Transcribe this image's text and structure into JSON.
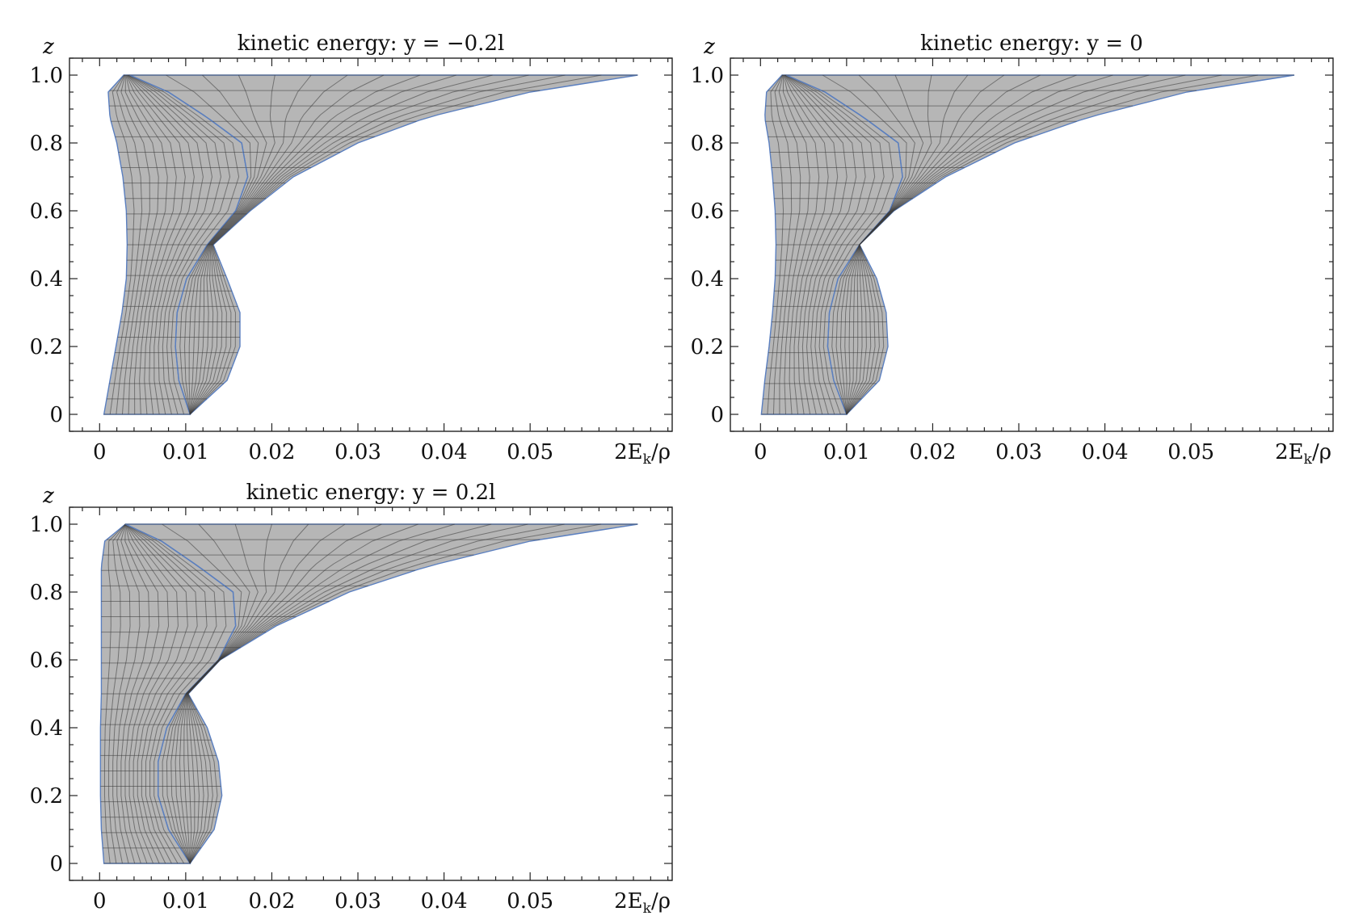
{
  "figure": {
    "colors": {
      "band_fill": "#7a7a7a",
      "band_edge": "#5a7fc0",
      "mesh": "#3a3a3a",
      "frame": "#222222"
    }
  },
  "chart_data": [
    {
      "type": "area",
      "title": "kinetic energy: y = −0.2l",
      "xlabel": "2E_k/ρ",
      "ylabel": "z",
      "xlim": [
        -0.0035,
        0.0665
      ],
      "ylim": [
        -0.05,
        1.05
      ],
      "xticks": [
        0,
        0.01,
        0.02,
        0.03,
        0.04,
        0.05
      ],
      "xtick_labels": [
        "0",
        "0.01",
        "0.02",
        "0.03",
        "0.04",
        "0.05"
      ],
      "yticks": [
        0,
        0.2,
        0.4,
        0.6,
        0.8,
        1.0
      ],
      "ytick_labels": [
        "0",
        "0.2",
        "0.4",
        "0.6",
        "0.8",
        "1.0"
      ],
      "x_end_label": "2E",
      "x_end_sub": "k",
      "x_end_suffix": "/ρ",
      "grid": false,
      "series": [
        {
          "z": [
            0,
            0.1,
            0.2,
            0.3,
            0.4,
            0.5,
            0.6,
            0.7,
            0.8,
            0.875,
            0.95,
            1.0
          ],
          "left": [
            0.0005,
            0.0012,
            0.0019,
            0.0026,
            0.0031,
            0.0032,
            0.0031,
            0.0027,
            0.002,
            0.0012,
            0.001,
            0.0028
          ],
          "right": [
            0.0105,
            0.0092,
            0.0088,
            0.009,
            0.0101,
            0.0125,
            0.0158,
            0.0172,
            0.0165,
            0.0125,
            0.008,
            0.0035
          ]
        },
        {
          "z": [
            0,
            0.1,
            0.2,
            0.3,
            0.4,
            0.5,
            0.6,
            0.7,
            0.8,
            0.875,
            0.95,
            1.0
          ],
          "left": [
            0.0105,
            0.0092,
            0.0088,
            0.009,
            0.0101,
            0.0125,
            0.0158,
            0.0172,
            0.0165,
            0.0125,
            0.008,
            0.0035
          ],
          "right": [
            0.0105,
            0.0148,
            0.0163,
            0.0163,
            0.0148,
            0.0132,
            0.0175,
            0.0225,
            0.03,
            0.038,
            0.05,
            0.0625
          ]
        }
      ]
    },
    {
      "type": "area",
      "title": "kinetic energy: y = 0",
      "xlabel": "2E_k/ρ",
      "ylabel": "z",
      "xlim": [
        -0.0035,
        0.0665
      ],
      "ylim": [
        -0.05,
        1.05
      ],
      "xticks": [
        0,
        0.01,
        0.02,
        0.03,
        0.04,
        0.05
      ],
      "xtick_labels": [
        "0",
        "0.01",
        "0.02",
        "0.03",
        "0.04",
        "0.05"
      ],
      "yticks": [
        0,
        0.2,
        0.4,
        0.6,
        0.8,
        1.0
      ],
      "ytick_labels": [
        "0",
        "0.2",
        "0.4",
        "0.6",
        "0.8",
        "1.0"
      ],
      "x_end_label": "2E",
      "x_end_sub": "k",
      "x_end_suffix": "/ρ",
      "grid": false,
      "series": [
        {
          "z": [
            0,
            0.1,
            0.2,
            0.3,
            0.4,
            0.5,
            0.6,
            0.7,
            0.8,
            0.875,
            0.95,
            1.0
          ],
          "left": [
            0.0001,
            0.0005,
            0.001,
            0.0014,
            0.0017,
            0.0018,
            0.0017,
            0.0014,
            0.001,
            0.0005,
            0.0007,
            0.0025
          ],
          "right": [
            0.01,
            0.0085,
            0.0078,
            0.008,
            0.009,
            0.0115,
            0.015,
            0.0165,
            0.016,
            0.012,
            0.0075,
            0.003
          ]
        },
        {
          "z": [
            0,
            0.1,
            0.2,
            0.3,
            0.4,
            0.5,
            0.6,
            0.7,
            0.8,
            0.875,
            0.95,
            1.0
          ],
          "left": [
            0.01,
            0.0085,
            0.0078,
            0.008,
            0.009,
            0.0115,
            0.015,
            0.0165,
            0.016,
            0.012,
            0.0075,
            0.003
          ],
          "right": [
            0.01,
            0.0138,
            0.0148,
            0.0146,
            0.0135,
            0.0115,
            0.0155,
            0.0215,
            0.0295,
            0.038,
            0.0495,
            0.062
          ]
        }
      ]
    },
    {
      "type": "area",
      "title": "kinetic energy: y = 0.2l",
      "xlabel": "2E_k/ρ",
      "ylabel": "z",
      "xlim": [
        -0.0035,
        0.0665
      ],
      "ylim": [
        -0.05,
        1.05
      ],
      "xticks": [
        0,
        0.01,
        0.02,
        0.03,
        0.04,
        0.05
      ],
      "xtick_labels": [
        "0",
        "0.01",
        "0.02",
        "0.03",
        "0.04",
        "0.05"
      ],
      "yticks": [
        0,
        0.2,
        0.4,
        0.6,
        0.8,
        1.0
      ],
      "ytick_labels": [
        "0",
        "0.2",
        "0.4",
        "0.6",
        "0.8",
        "1.0"
      ],
      "x_end_label": "2E",
      "x_end_sub": "k",
      "x_end_suffix": "/ρ",
      "grid": false,
      "series": [
        {
          "z": [
            0,
            0.1,
            0.2,
            0.3,
            0.4,
            0.5,
            0.6,
            0.7,
            0.8,
            0.875,
            0.95,
            1.0
          ],
          "left": [
            0.0005,
            0.0002,
            0.0001,
            0.0001,
            0.0001,
            0.0002,
            0.0002,
            0.0002,
            0.0002,
            0.0002,
            0.0006,
            0.003
          ],
          "right": [
            0.0105,
            0.008,
            0.0068,
            0.0068,
            0.0078,
            0.01,
            0.0138,
            0.0158,
            0.0155,
            0.0115,
            0.0072,
            0.003
          ]
        },
        {
          "z": [
            0,
            0.1,
            0.2,
            0.3,
            0.4,
            0.5,
            0.6,
            0.7,
            0.8,
            0.875,
            0.95,
            1.0
          ],
          "left": [
            0.0105,
            0.008,
            0.0068,
            0.0068,
            0.0078,
            0.01,
            0.0138,
            0.0158,
            0.0155,
            0.0115,
            0.0072,
            0.003
          ],
          "right": [
            0.0105,
            0.0133,
            0.0142,
            0.0138,
            0.0125,
            0.0103,
            0.014,
            0.0205,
            0.029,
            0.038,
            0.05,
            0.0625
          ]
        }
      ]
    }
  ]
}
